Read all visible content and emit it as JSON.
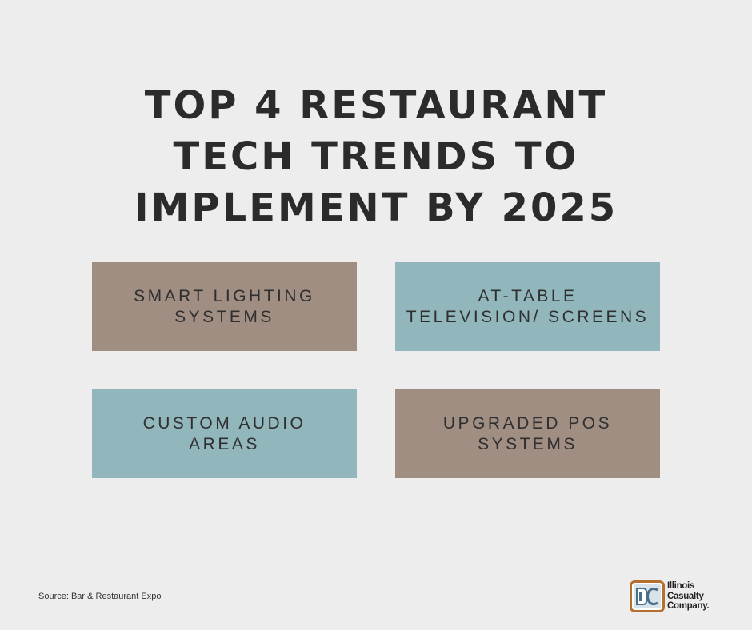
{
  "title": {
    "lines": [
      "TOP 4 RESTAURANT",
      "TECH TRENDS TO",
      "IMPLEMENT BY 2025"
    ]
  },
  "cards": [
    {
      "label": "SMART LIGHTING\nSYSTEMS",
      "color": "#a08e82"
    },
    {
      "label": "AT-TABLE\nTELEVISION/ SCREENS",
      "color": "#91b7bc"
    },
    {
      "label": "CUSTOM AUDIO\nAREAS",
      "color": "#91b7bc"
    },
    {
      "label": "UPGRADED POS\nSYSTEMS",
      "color": "#a08e82"
    }
  ],
  "source": "Source: Bar & Restaurant Expo",
  "logo": {
    "icon": "illinois-casualty-logo-icon",
    "lines": [
      "Illinois",
      "Casualty",
      "Company."
    ]
  },
  "colors": {
    "background": "#ededed",
    "text": "#2b2b2b",
    "logo_accent": "#b5702f"
  }
}
